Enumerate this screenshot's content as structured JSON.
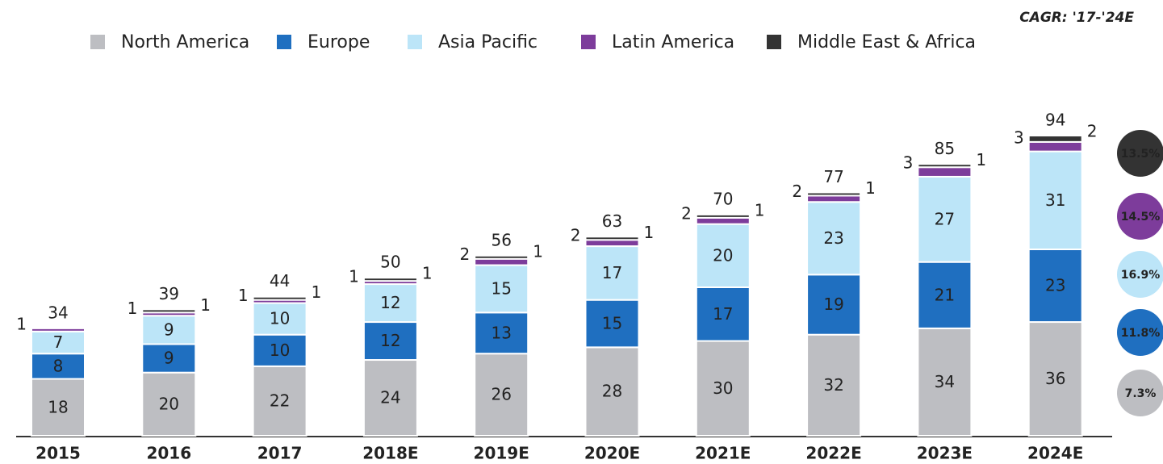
{
  "chart_data": {
    "type": "stacked_bar",
    "title": "CAGR: '17-'24E",
    "categories": [
      "2015",
      "2016",
      "2017",
      "2018E",
      "2019E",
      "2020E",
      "2021E",
      "2022E",
      "2023E",
      "2024E"
    ],
    "series": [
      {
        "name": "North America",
        "color": "#bdbec2",
        "label_color": "#333333",
        "values": [
          18,
          20,
          22,
          24,
          26,
          28,
          30,
          32,
          34,
          36
        ],
        "cagr": "7.3%"
      },
      {
        "name": "Europe",
        "color": "#1f6fc0",
        "label_color": "#ffffff",
        "values": [
          8,
          9,
          10,
          12,
          13,
          15,
          17,
          19,
          21,
          23
        ],
        "cagr": "11.8%"
      },
      {
        "name": "Asia Pacific",
        "color": "#bce5f8",
        "label_color": "#333333",
        "values": [
          7,
          9,
          10,
          12,
          15,
          17,
          20,
          23,
          27,
          31
        ],
        "cagr": "16.9%"
      },
      {
        "name": "Latin America",
        "color": "#7d3c9b",
        "label_color": "#333333",
        "values": [
          1,
          1,
          1,
          1,
          2,
          2,
          2,
          2,
          3,
          3
        ],
        "cagr": "14.5%"
      },
      {
        "name": "Middle East & Africa",
        "color": "#333333",
        "label_color": "#333333",
        "values": [
          null,
          1,
          1,
          1,
          1,
          1,
          1,
          1,
          1,
          2
        ],
        "cagr": "13.5%"
      }
    ],
    "totals": [
      34,
      39,
      44,
      50,
      56,
      63,
      70,
      77,
      85,
      94
    ],
    "ylim": [
      0,
      100
    ]
  }
}
